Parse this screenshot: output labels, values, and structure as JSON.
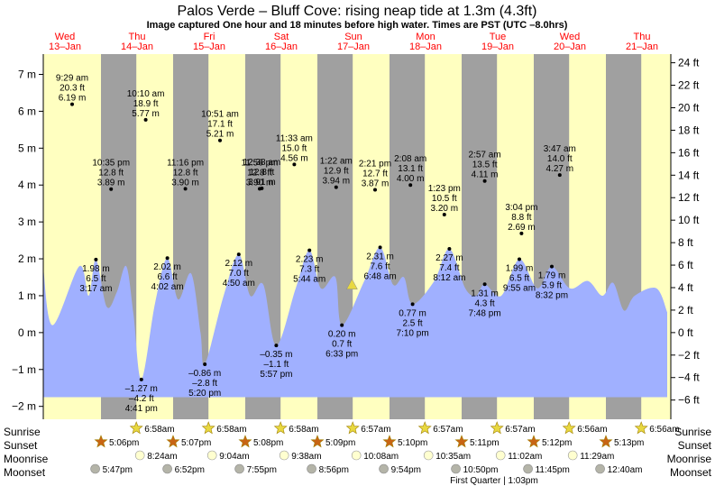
{
  "header": {
    "title": "Palos Verde – Bluff Cove: rising  neap tide at 1.3m (4.3ft)",
    "subtitle": "Image captured One hour and 18 minutes before high water. Times are PST (UTC –8.0hrs)"
  },
  "colors": {
    "day": "#ffffc0",
    "night": "#a0a0a0",
    "water": "#a0b0ff",
    "date_text": "#ff0000",
    "marker": "#e8d840",
    "sunset_star": "#c86414",
    "moon": "#ffffd0",
    "moonset": "#b4b4a8"
  },
  "chart_data": {
    "type": "area",
    "title": "Palos Verde – Bluff Cove: rising  neap tide at 1.3m (4.3ft)",
    "x_range_days": [
      0,
      8.7
    ],
    "ylim_m": [
      -2.35,
      7.55
    ],
    "yticks_m": [
      -2,
      -1,
      0,
      1,
      2,
      3,
      4,
      5,
      6,
      7
    ],
    "ytick_labels_m": [
      "−2 m",
      "−1 m",
      "0 m",
      "1 m",
      "2 m",
      "3 m",
      "4 m",
      "5 m",
      "6 m",
      "7 m"
    ],
    "yticks_ft": [
      -6,
      -4,
      -2,
      0,
      2,
      4,
      6,
      8,
      10,
      12,
      14,
      16,
      18,
      20,
      22,
      24
    ],
    "ytick_labels_ft": [
      "−6 ft",
      "−4 ft",
      "−2 ft",
      "0 ft",
      "2 ft",
      "4 ft",
      "6 ft",
      "8 ft",
      "10 ft",
      "12 ft",
      "14 ft",
      "16 ft",
      "18 ft",
      "20 ft",
      "22 ft",
      "24 ft"
    ],
    "days": [
      {
        "dow": "Wed",
        "date": "13–Jan",
        "x": 0.3
      },
      {
        "dow": "Thu",
        "date": "14–Jan",
        "x": 1.3
      },
      {
        "dow": "Fri",
        "date": "15–Jan",
        "x": 2.3
      },
      {
        "dow": "Sat",
        "date": "16–Jan",
        "x": 3.3
      },
      {
        "dow": "Sun",
        "date": "17–Jan",
        "x": 4.3
      },
      {
        "dow": "Mon",
        "date": "18–Jan",
        "x": 5.3
      },
      {
        "dow": "Tue",
        "date": "19–Jan",
        "x": 6.3
      },
      {
        "dow": "Wed",
        "date": "20–Jan",
        "x": 7.3
      },
      {
        "dow": "Thu",
        "date": "21–Jan",
        "x": 8.3
      }
    ],
    "nights": [
      [
        0.8,
        1.29
      ],
      [
        1.8,
        2.29
      ],
      [
        2.8,
        3.29
      ],
      [
        3.8,
        4.29
      ],
      [
        4.8,
        5.29
      ],
      [
        5.8,
        6.29
      ],
      [
        6.8,
        7.29
      ],
      [
        7.8,
        8.29
      ]
    ],
    "tide_points": [
      {
        "x": 0.0,
        "y": 1.75
      },
      {
        "x": 0.13,
        "y": 0.2
      },
      {
        "x": 0.5,
        "y": 1.8
      },
      {
        "x": 0.63,
        "y": 1.0
      },
      {
        "x": 0.73,
        "y": 1.98,
        "time": "3:17 am",
        "ft": "6.5 ft",
        "m": "1.98 m",
        "lbl": "below"
      },
      {
        "x": 0.88,
        "y": 0.7
      },
      {
        "x": 1.02,
        "y": 1.1
      },
      {
        "x": 1.15,
        "y": 1.8
      },
      {
        "x": 1.25,
        "y": 0.5
      },
      {
        "x": 1.36,
        "y": -1.27,
        "time": "4:41 pm",
        "ft": "–4.2 ft",
        "m": "–1.27 m",
        "lbl": "below"
      },
      {
        "x": 1.55,
        "y": 0.8
      },
      {
        "x": 1.72,
        "y": 2.02,
        "time": "4:02 am",
        "ft": "6.6 ft",
        "m": "2.02 m",
        "lbl": "below"
      },
      {
        "x": 1.87,
        "y": 0.9
      },
      {
        "x": 2.05,
        "y": 1.6
      },
      {
        "x": 2.18,
        "y": 0.0
      },
      {
        "x": 2.24,
        "y": -0.86,
        "time": "5:20 pm",
        "ft": "–2.8 ft",
        "m": "–0.86 m",
        "lbl": "below"
      },
      {
        "x": 2.5,
        "y": 1.0
      },
      {
        "x": 2.71,
        "y": 2.12,
        "time": "4:50 am",
        "ft": "7.0 ft",
        "m": "2.12 m",
        "lbl": "below"
      },
      {
        "x": 2.87,
        "y": 1.0
      },
      {
        "x": 3.05,
        "y": 1.3
      },
      {
        "x": 3.23,
        "y": -0.35,
        "time": "5:57 pm",
        "ft": "–1.1 ft",
        "m": "–0.35 m",
        "lbl": "below"
      },
      {
        "x": 3.5,
        "y": 1.2
      },
      {
        "x": 3.69,
        "y": 2.23,
        "time": "5:44 am",
        "ft": "7.3 ft",
        "m": "2.23 m",
        "lbl": "below"
      },
      {
        "x": 3.85,
        "y": 1.2
      },
      {
        "x": 4.05,
        "y": 1.5
      },
      {
        "x": 4.14,
        "y": 0.2,
        "time": "6:33 pm",
        "ft": "0.7 ft",
        "m": "0.20 m",
        "lbl": "below"
      },
      {
        "x": 4.45,
        "y": 1.4
      },
      {
        "x": 4.67,
        "y": 2.31,
        "time": "6:48 am",
        "ft": "7.6 ft",
        "m": "2.31 m",
        "lbl": "below"
      },
      {
        "x": 4.85,
        "y": 1.3
      },
      {
        "x": 5.0,
        "y": 1.5
      },
      {
        "x": 5.12,
        "y": 0.77,
        "time": "7:10 pm",
        "ft": "2.5 ft",
        "m": "0.77 m",
        "lbl": "below"
      },
      {
        "x": 5.42,
        "y": 1.4
      },
      {
        "x": 5.63,
        "y": 2.27,
        "time": "8:12 am",
        "ft": "7.4 ft",
        "m": "2.27 m",
        "lbl": "below"
      },
      {
        "x": 5.85,
        "y": 1.2
      },
      {
        "x": 6.0,
        "y": 1.0
      },
      {
        "x": 6.12,
        "y": 1.31,
        "time": "7:48 pm",
        "ft": "4.3 ft",
        "m": "1.31 m",
        "lbl": "below"
      },
      {
        "x": 6.35,
        "y": 1.0
      },
      {
        "x": 6.6,
        "y": 1.99,
        "time": "9:55 am",
        "ft": "6.5 ft",
        "m": "1.99 m",
        "lbl": "below"
      },
      {
        "x": 6.85,
        "y": 1.2
      },
      {
        "x": 7.05,
        "y": 1.79,
        "time": "8:32 pm",
        "ft": "5.9 ft",
        "m": "1.79 m",
        "lbl": "below"
      },
      {
        "x": 7.3,
        "y": 1.2
      },
      {
        "x": 7.55,
        "y": 1.4
      },
      {
        "x": 7.75,
        "y": 1.0
      },
      {
        "x": 7.9,
        "y": 1.35
      },
      {
        "x": 8.05,
        "y": 0.6
      },
      {
        "x": 8.2,
        "y": 1.0
      },
      {
        "x": 8.5,
        "y": 1.2
      },
      {
        "x": 8.65,
        "y": 0.55
      }
    ],
    "high_labels": [
      {
        "time": "9:29 am",
        "ft": "20.3 ft",
        "m": "6.19 m",
        "x": 0.4,
        "y": 6.19
      },
      {
        "time": "10:35 pm",
        "ft": "12.8 ft",
        "m": "3.89 m",
        "x": 0.94,
        "y": 3.89
      },
      {
        "time": "10:10 am",
        "ft": "18.9 ft",
        "m": "5.77 m",
        "x": 1.42,
        "y": 5.77
      },
      {
        "time": "11:16 pm",
        "ft": "12.8 ft",
        "m": "3.90 m",
        "x": 1.97,
        "y": 3.9
      },
      {
        "time": "10:51 am",
        "ft": "17.1 ft",
        "m": "5.21 m",
        "x": 2.45,
        "y": 5.21
      },
      {
        "time": "11:56 pm",
        "ft": "12.8 ft",
        "m": "3.90 m",
        "x": 3.0,
        "y": 3.9
      },
      {
        "time": "12:38 am",
        "ft": "12.8 ft",
        "m": "3.91 m",
        "x": 3.03,
        "y": 3.91
      },
      {
        "time": "11:33 am",
        "ft": "15.0 ft",
        "m": "4.56 m",
        "x": 3.48,
        "y": 4.56
      },
      {
        "time": "1:22 am",
        "ft": "12.9 ft",
        "m": "3.94 m",
        "x": 4.06,
        "y": 3.94
      },
      {
        "time": "2:21 pm",
        "ft": "12.7 ft",
        "m": "3.87 m",
        "x": 4.6,
        "y": 3.87
      },
      {
        "time": "2:08 am",
        "ft": "13.1 ft",
        "m": "4.00 m",
        "x": 5.09,
        "y": 4.0
      },
      {
        "time": "1:23 pm",
        "ft": "10.5 ft",
        "m": "3.20 m",
        "x": 5.56,
        "y": 3.2
      },
      {
        "time": "2:57 am",
        "ft": "13.5 ft",
        "m": "4.11 m",
        "x": 6.12,
        "y": 4.11
      },
      {
        "time": "3:04 pm",
        "ft": "8.8 ft",
        "m": "2.69 m",
        "x": 6.63,
        "y": 2.69
      },
      {
        "time": "3:47 am",
        "ft": "14.0 ft",
        "m": "4.27 m",
        "x": 7.16,
        "y": 4.27
      }
    ],
    "current": {
      "x": 4.28,
      "y": 1.3
    },
    "sun": [
      {
        "rise": "6:58am",
        "set": "5:06pm"
      },
      {
        "rise": "6:58am",
        "set": "5:07pm"
      },
      {
        "rise": "6:58am",
        "set": "5:08pm"
      },
      {
        "rise": "6:57am",
        "set": "5:09pm"
      },
      {
        "rise": "6:57am",
        "set": "5:10pm"
      },
      {
        "rise": "6:57am",
        "set": "5:11pm"
      },
      {
        "rise": "6:56am",
        "set": "5:12pm"
      },
      {
        "rise": "6:56am",
        "set": "5:13pm"
      }
    ],
    "moonrise": [
      "8:24am",
      "9:04am",
      "9:38am",
      "10:08am",
      "10:35am",
      "11:02am",
      "11:29am"
    ],
    "moonset": [
      "5:47pm",
      "6:52pm",
      "7:55pm",
      "8:56pm",
      "9:54pm",
      "10:50pm",
      "11:45pm",
      "12:40am"
    ],
    "moon_phase_note": "First Quarter | 1:03pm",
    "row_labels": {
      "sunrise": "Sunrise",
      "sunset": "Sunset",
      "moonrise": "Moonrise",
      "moonset": "Moonset"
    }
  }
}
